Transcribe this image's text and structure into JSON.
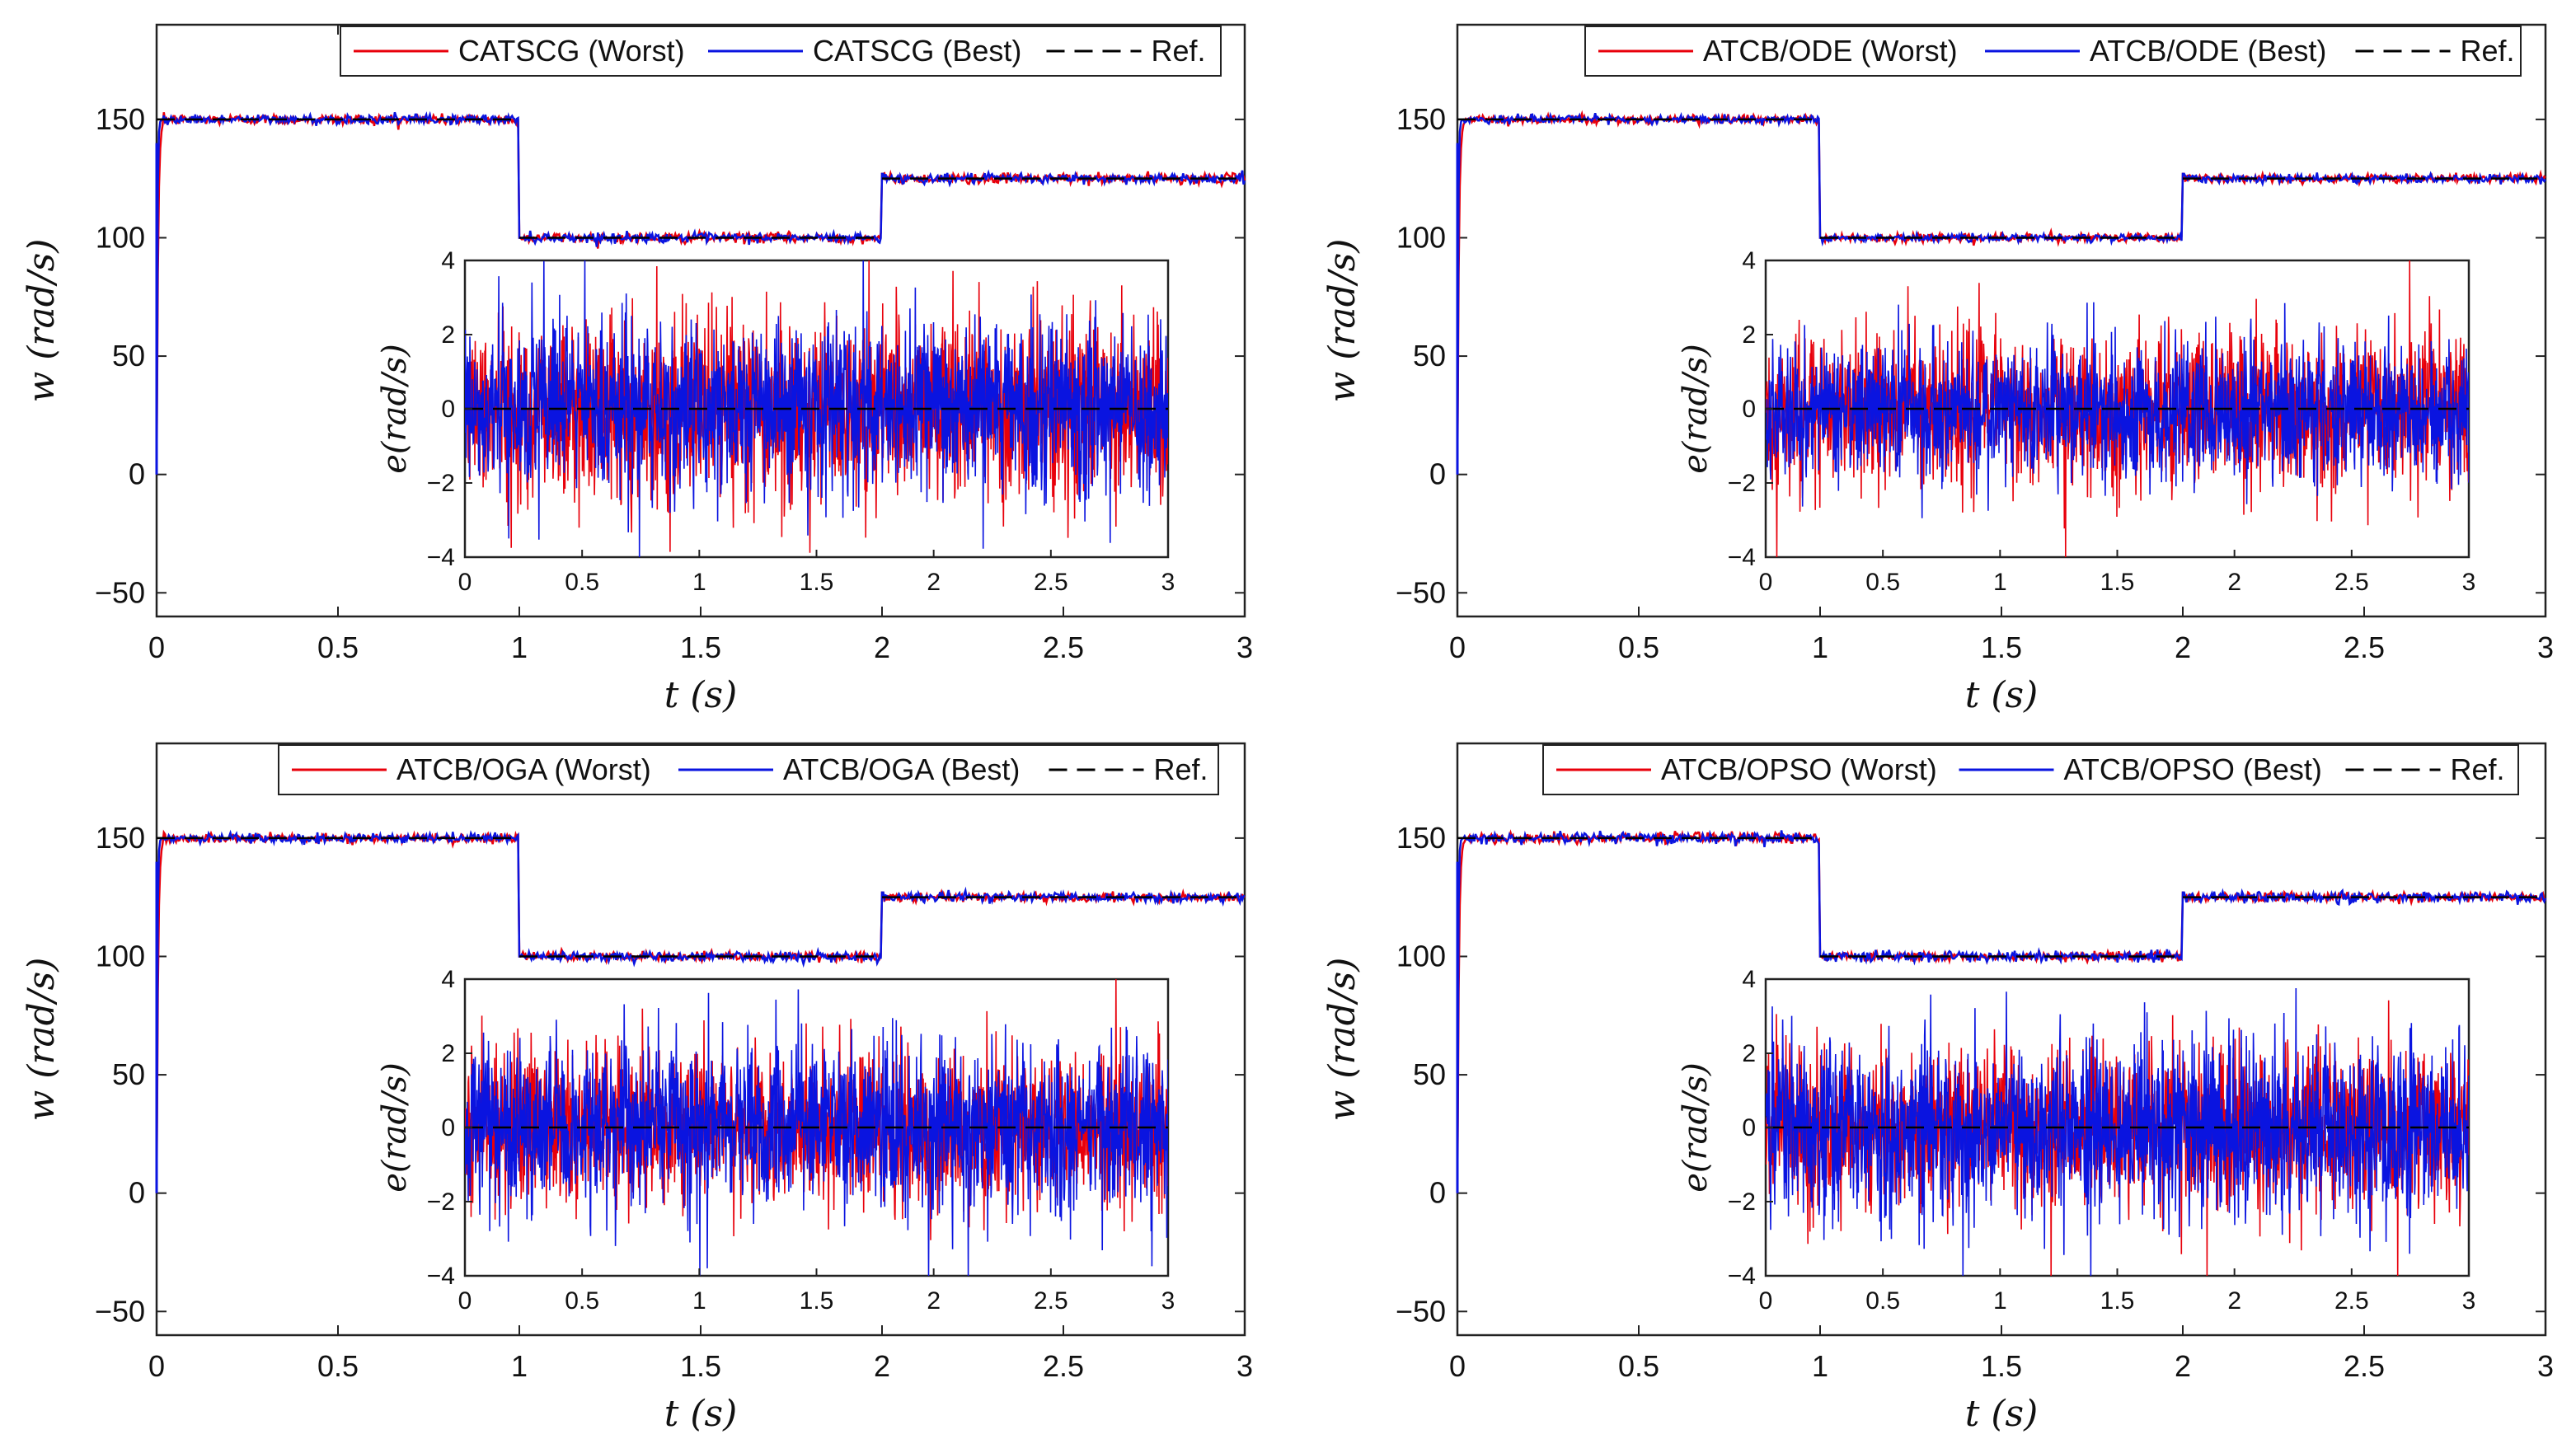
{
  "figure": {
    "xlabel": "t (s)",
    "ylabel": "w (rad/s)",
    "inset_ylabel": "e(rad/s)"
  },
  "chart_data": [
    {
      "type": "line",
      "title": "",
      "xlabel": "t (s)",
      "ylabel": "w (rad/s)",
      "xlim": [
        0,
        3
      ],
      "ylim": [
        -60,
        190
      ],
      "xticks": [
        "0",
        "0.5",
        "1",
        "1.5",
        "2",
        "2.5",
        "3"
      ],
      "yticks": [
        "-50",
        "0",
        "50",
        "100",
        "150"
      ],
      "reference": {
        "x": [
          0,
          1,
          2,
          3
        ],
        "y": [
          150,
          100,
          125,
          125
        ]
      },
      "series": [
        {
          "name": "CATSCG (Worst)",
          "color": "#e8000b",
          "noise": 1.2
        },
        {
          "name": "CATSCG (Best)",
          "color": "#0a14e0",
          "noise": 1.1
        },
        {
          "name": "Ref.",
          "color": "#000000",
          "dashed": true
        }
      ],
      "inset": {
        "ylabel": "e(rad/s)",
        "xlim": [
          0,
          3
        ],
        "ylim": [
          -4,
          4
        ],
        "xticks": [
          "0",
          "0.5",
          "1",
          "1.5",
          "2",
          "2.5",
          "3"
        ],
        "yticks": [
          "-4",
          "-2",
          "0",
          "2",
          "4"
        ]
      }
    },
    {
      "type": "line",
      "title": "",
      "xlabel": "t (s)",
      "ylabel": "w (rad/s)",
      "xlim": [
        0,
        3
      ],
      "ylim": [
        -60,
        190
      ],
      "xticks": [
        "0",
        "0.5",
        "1",
        "1.5",
        "2",
        "2.5",
        "3"
      ],
      "yticks": [
        "-50",
        "0",
        "50",
        "100",
        "150"
      ],
      "reference": {
        "x": [
          0,
          1,
          2,
          3
        ],
        "y": [
          150,
          100,
          125,
          125
        ]
      },
      "series": [
        {
          "name": "ATCB/ODE (Worst)",
          "color": "#e8000b",
          "noise": 1.0
        },
        {
          "name": "ATCB/ODE (Best)",
          "color": "#0a14e0",
          "noise": 0.9
        },
        {
          "name": "Ref.",
          "color": "#000000",
          "dashed": true
        }
      ],
      "inset": {
        "ylabel": "e(rad/s)",
        "xlim": [
          0,
          3
        ],
        "ylim": [
          -4,
          4
        ],
        "xticks": [
          "0",
          "0.5",
          "1",
          "1.5",
          "2",
          "2.5",
          "3"
        ],
        "yticks": [
          "-4",
          "-2",
          "0",
          "2",
          "4"
        ]
      }
    },
    {
      "type": "line",
      "title": "",
      "xlabel": "t (s)",
      "ylabel": "w (rad/s)",
      "xlim": [
        0,
        3
      ],
      "ylim": [
        -60,
        190
      ],
      "xticks": [
        "0",
        "0.5",
        "1",
        "1.5",
        "2",
        "2.5",
        "3"
      ],
      "yticks": [
        "-50",
        "0",
        "50",
        "100",
        "150"
      ],
      "reference": {
        "x": [
          0,
          1,
          2,
          3
        ],
        "y": [
          150,
          100,
          125,
          125
        ]
      },
      "series": [
        {
          "name": "ATCB/OGA (Worst)",
          "color": "#e8000b",
          "noise": 1.0
        },
        {
          "name": "ATCB/OGA (Best)",
          "color": "#0a14e0",
          "noise": 1.1
        },
        {
          "name": "Ref.",
          "color": "#000000",
          "dashed": true
        }
      ],
      "inset": {
        "ylabel": "e(rad/s)",
        "xlim": [
          0,
          3
        ],
        "ylim": [
          -4,
          4
        ],
        "xticks": [
          "0",
          "0.5",
          "1",
          "1.5",
          "2",
          "2.5",
          "3"
        ],
        "yticks": [
          "-4",
          "-2",
          "0",
          "2",
          "4"
        ]
      }
    },
    {
      "type": "line",
      "title": "",
      "xlabel": "t (s)",
      "ylabel": "w (rad/s)",
      "xlim": [
        0,
        3
      ],
      "ylim": [
        -60,
        190
      ],
      "xticks": [
        "0",
        "0.5",
        "1",
        "1.5",
        "2",
        "2.5",
        "3"
      ],
      "yticks": [
        "-50",
        "0",
        "50",
        "100",
        "150"
      ],
      "reference": {
        "x": [
          0,
          1,
          2,
          3
        ],
        "y": [
          150,
          100,
          125,
          125
        ]
      },
      "series": [
        {
          "name": "ATCB/OPSO (Worst)",
          "color": "#e8000b",
          "noise": 1.1
        },
        {
          "name": "ATCB/OPSO (Best)",
          "color": "#0a14e0",
          "noise": 1.2
        },
        {
          "name": "Ref.",
          "color": "#000000",
          "dashed": true
        }
      ],
      "inset": {
        "ylabel": "e(rad/s)",
        "xlim": [
          0,
          3
        ],
        "ylim": [
          -4,
          4
        ],
        "xticks": [
          "0",
          "0.5",
          "1",
          "1.5",
          "2",
          "2.5",
          "3"
        ],
        "yticks": [
          "-4",
          "-2",
          "0",
          "2",
          "4"
        ]
      }
    }
  ]
}
